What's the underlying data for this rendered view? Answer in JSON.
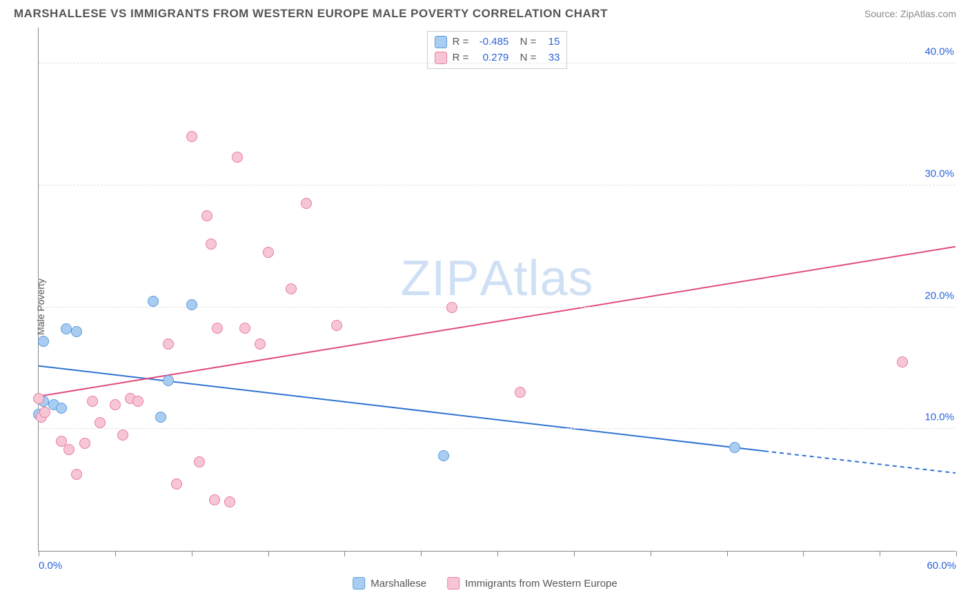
{
  "title": "MARSHALLESE VS IMMIGRANTS FROM WESTERN EUROPE MALE POVERTY CORRELATION CHART",
  "source_label": "Source:",
  "source_name": "ZipAtlas.com",
  "ylabel": "Male Poverty",
  "watermark": {
    "part1": "ZIP",
    "part2": "Atlas"
  },
  "chart": {
    "type": "scatter",
    "xlim": [
      0,
      60
    ],
    "ylim": [
      0,
      43
    ],
    "x_ticks": [
      0,
      5,
      10,
      15,
      20,
      25,
      30,
      35,
      40,
      45,
      50,
      55,
      60
    ],
    "x_labels": [
      {
        "x": 0,
        "text": "0.0%"
      },
      {
        "x": 60,
        "text": "60.0%"
      }
    ],
    "y_gridlines": [
      10,
      20,
      30,
      40
    ],
    "y_labels": [
      {
        "y": 10,
        "text": "10.0%"
      },
      {
        "y": 20,
        "text": "20.0%"
      },
      {
        "y": 30,
        "text": "30.0%"
      },
      {
        "y": 40,
        "text": "40.0%"
      }
    ],
    "background_color": "#ffffff",
    "grid_color": "#e0e0e0",
    "axis_color": "#888888",
    "point_radius": 8,
    "series": [
      {
        "name": "Marshallese",
        "fill": "#a9cdf0",
        "stroke": "#5b9bdc",
        "line_color": "#2e72d2",
        "r_value": "-0.485",
        "n_value": "15",
        "trend": {
          "x1": 0,
          "y1": 15.2,
          "x2": 47.5,
          "y2": 8.2,
          "dash_x2": 60,
          "dash_y2": 6.4
        },
        "points": [
          {
            "x": 0.3,
            "y": 17.2
          },
          {
            "x": 1.8,
            "y": 18.2
          },
          {
            "x": 2.5,
            "y": 18.0
          },
          {
            "x": 0.3,
            "y": 12.3
          },
          {
            "x": 1.0,
            "y": 12.0
          },
          {
            "x": 0.0,
            "y": 11.2
          },
          {
            "x": 1.5,
            "y": 11.7
          },
          {
            "x": 7.5,
            "y": 20.5
          },
          {
            "x": 10.0,
            "y": 20.2
          },
          {
            "x": 8.5,
            "y": 14.0
          },
          {
            "x": 8.0,
            "y": 11.0
          },
          {
            "x": 26.5,
            "y": 7.8
          },
          {
            "x": 45.5,
            "y": 8.5
          }
        ]
      },
      {
        "name": "Immigants_WE",
        "label": "Immigrants from Western Europe",
        "fill": "#f7c6d4",
        "stroke": "#e97ba0",
        "line_color": "#e14a7c",
        "r_value": "0.279",
        "n_value": "33",
        "trend": {
          "x1": 0,
          "y1": 12.7,
          "x2": 60,
          "y2": 25.0
        },
        "points": [
          {
            "x": 0.0,
            "y": 12.5
          },
          {
            "x": 0.2,
            "y": 11.0
          },
          {
            "x": 0.4,
            "y": 11.4
          },
          {
            "x": 1.5,
            "y": 9.0
          },
          {
            "x": 2.0,
            "y": 8.3
          },
          {
            "x": 2.5,
            "y": 6.3
          },
          {
            "x": 3.0,
            "y": 8.8
          },
          {
            "x": 3.5,
            "y": 12.3
          },
          {
            "x": 4.0,
            "y": 10.5
          },
          {
            "x": 5.0,
            "y": 12.0
          },
          {
            "x": 5.5,
            "y": 9.5
          },
          {
            "x": 6.0,
            "y": 12.5
          },
          {
            "x": 6.5,
            "y": 12.3
          },
          {
            "x": 8.5,
            "y": 17.0
          },
          {
            "x": 9.0,
            "y": 5.5
          },
          {
            "x": 10.0,
            "y": 34.0
          },
          {
            "x": 10.5,
            "y": 7.3
          },
          {
            "x": 11.0,
            "y": 27.5
          },
          {
            "x": 11.3,
            "y": 25.2
          },
          {
            "x": 11.5,
            "y": 4.2
          },
          {
            "x": 11.7,
            "y": 18.3
          },
          {
            "x": 12.5,
            "y": 4.0
          },
          {
            "x": 13.0,
            "y": 32.3
          },
          {
            "x": 13.5,
            "y": 18.3
          },
          {
            "x": 14.5,
            "y": 17.0
          },
          {
            "x": 15.0,
            "y": 24.5
          },
          {
            "x": 16.5,
            "y": 21.5
          },
          {
            "x": 17.5,
            "y": 28.5
          },
          {
            "x": 19.5,
            "y": 18.5
          },
          {
            "x": 27.0,
            "y": 20.0
          },
          {
            "x": 31.5,
            "y": 13.0
          },
          {
            "x": 56.5,
            "y": 15.5
          }
        ]
      }
    ]
  },
  "bottom_legend": [
    {
      "label": "Marshallese",
      "fill": "#a9cdf0",
      "stroke": "#5b9bdc"
    },
    {
      "label": "Immigrants from Western Europe",
      "fill": "#f7c6d4",
      "stroke": "#e97ba0"
    }
  ]
}
